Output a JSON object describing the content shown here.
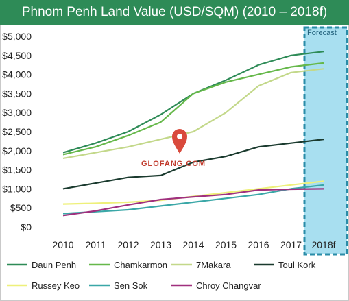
{
  "chart_data": {
    "type": "line",
    "title": "Phnom Penh Land Value (USD/SQM) (2010 – 2018f)",
    "categories": [
      "2010",
      "2011",
      "2012",
      "2013",
      "2014",
      "2015",
      "2016",
      "2017",
      "2018f"
    ],
    "y_tick_labels": [
      "$0",
      "$500",
      "$1,000",
      "$1,500",
      "$2,000",
      "$2,500",
      "$3,000",
      "$3,500",
      "$4,000",
      "$4,500",
      "$5,000"
    ],
    "ylim": [
      0,
      5000
    ],
    "grid": false,
    "legend_position": "bottom",
    "forecast_label": "Forecast",
    "forecast_color": "#a8dff0",
    "forecast_border_color": "#2a8ca8",
    "series": [
      {
        "name": "Daun Penh",
        "color": "#2e8b57",
        "values": [
          1950,
          2200,
          2500,
          2950,
          3500,
          3850,
          4250,
          4500,
          4600
        ]
      },
      {
        "name": "Chamkarmon",
        "color": "#66b84a",
        "values": [
          1900,
          2100,
          2400,
          2750,
          3500,
          3800,
          4000,
          4200,
          4300
        ]
      },
      {
        "name": "7Makara",
        "color": "#c3d88a",
        "values": [
          1800,
          1950,
          2100,
          2300,
          2500,
          3000,
          3700,
          4050,
          4150
        ]
      },
      {
        "name": "Toul Kork",
        "color": "#1a3a2e",
        "values": [
          1000,
          1150,
          1300,
          1350,
          1700,
          1850,
          2100,
          2200,
          2300
        ]
      },
      {
        "name": "Russey Keo",
        "color": "#eef07a",
        "values": [
          600,
          620,
          650,
          700,
          800,
          900,
          1000,
          1100,
          1200
        ]
      },
      {
        "name": "Sen Sok",
        "color": "#3aa7a7",
        "values": [
          350,
          400,
          450,
          550,
          650,
          750,
          850,
          1000,
          1100
        ]
      },
      {
        "name": "Chroy Changvar",
        "color": "#a0307e",
        "values": [
          300,
          420,
          580,
          720,
          790,
          850,
          970,
          990,
          1000
        ]
      }
    ]
  },
  "watermark": {
    "text": "GLOFANG.COM",
    "icon": "map-pin-icon"
  }
}
